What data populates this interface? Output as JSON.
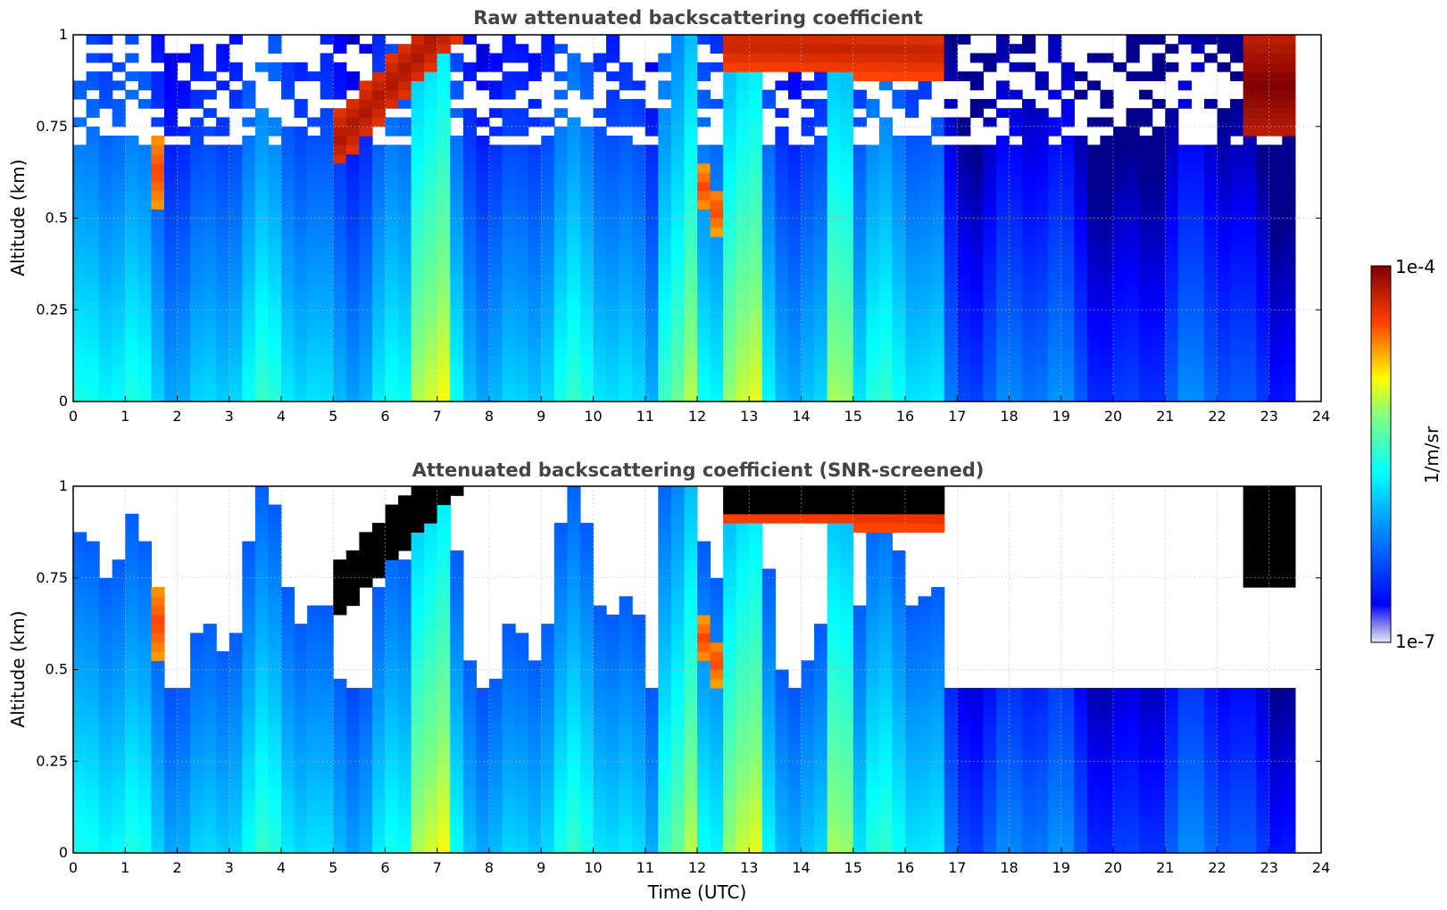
{
  "chart_data": [
    {
      "type": "heatmap",
      "title": "Raw attenuated backscattering coefficient",
      "xlabel": "",
      "ylabel": "Altitude (km)",
      "xlim": [
        0,
        24
      ],
      "ylim": [
        0,
        1
      ],
      "x_ticks": [
        "0",
        "1",
        "2",
        "3",
        "4",
        "5",
        "6",
        "7",
        "8",
        "9",
        "10",
        "11",
        "12",
        "13",
        "14",
        "15",
        "16",
        "17",
        "18",
        "19",
        "20",
        "21",
        "22",
        "23",
        "24"
      ],
      "y_ticks": [
        "0",
        "0.25",
        "0.5",
        "0.75",
        "1"
      ],
      "grid": true,
      "screened": false
    },
    {
      "type": "heatmap",
      "title": "Attenuated backscattering coefficient (SNR-screened)",
      "xlabel": "Time (UTC)",
      "ylabel": "Altitude (km)",
      "xlim": [
        0,
        24
      ],
      "ylim": [
        0,
        1
      ],
      "x_ticks": [
        "0",
        "1",
        "2",
        "3",
        "4",
        "5",
        "6",
        "7",
        "8",
        "9",
        "10",
        "11",
        "12",
        "13",
        "14",
        "15",
        "16",
        "17",
        "18",
        "19",
        "20",
        "21",
        "22",
        "23",
        "24"
      ],
      "y_ticks": [
        "0",
        "0.25",
        "0.5",
        "0.75",
        "1"
      ],
      "grid": true,
      "screened": true
    }
  ],
  "colorbar": {
    "label": "1/m/sr",
    "max_label": "1e-4",
    "min_label": "1e-7",
    "colormap": "jet",
    "scale": "log"
  },
  "data_end_hour": 23.6,
  "features": [
    {
      "name": "elevated aerosol layer",
      "t0": 5.0,
      "t1": 7.4,
      "base_start": 0.62,
      "base_end": 0.98,
      "thickness": 0.16,
      "strength": 0.95
    },
    {
      "name": "thin layer",
      "t0": 1.45,
      "t1": 1.75,
      "base_start": 0.5,
      "base_end": 0.55,
      "thickness": 0.2,
      "strength": 0.85
    },
    {
      "name": "layer near noon",
      "t0": 11.9,
      "t1": 12.5,
      "base_start": 0.58,
      "base_end": 0.43,
      "thickness": 0.12,
      "strength": 0.85
    },
    {
      "name": "top layer midday",
      "t0": 12.5,
      "t1": 16.7,
      "base_start": 0.9,
      "base_end": 0.88,
      "thickness": 0.15,
      "strength": 0.92
    },
    {
      "name": "evening cloud",
      "t0": 22.5,
      "t1": 23.6,
      "base_start": 0.72,
      "base_end": 0.72,
      "thickness": 0.28,
      "strength": 1.0
    }
  ],
  "colors": {
    "background": "#ffffff",
    "grid": "#bbbbbb",
    "saturated_screen": "#000000"
  }
}
